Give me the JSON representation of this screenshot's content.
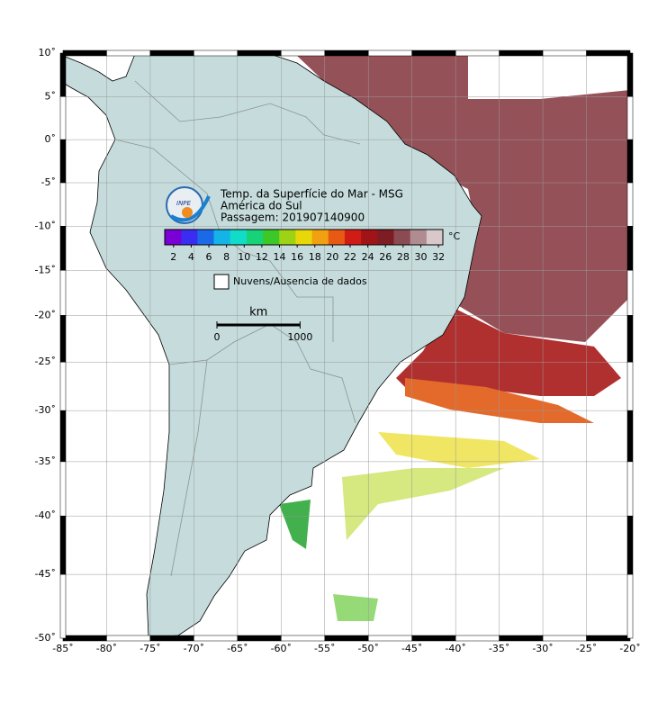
{
  "title": "Temp. da Superfície do Mar - MSG",
  "region": "América do Sul",
  "pass": "Passagem: 201907140900",
  "logo": "INPE",
  "colorbar": {
    "unit": "°C",
    "lim": [
      1,
      32.5
    ],
    "ticks": [
      2,
      4,
      6,
      8,
      10,
      12,
      14,
      16,
      18,
      20,
      22,
      24,
      26,
      28,
      30,
      32
    ],
    "colors": [
      "#7a00d6",
      "#3a2cf0",
      "#1a6ae8",
      "#14b4e6",
      "#10dcc8",
      "#18d27a",
      "#3cc828",
      "#9ed214",
      "#e8d80a",
      "#f0a010",
      "#e85a14",
      "#d01c14",
      "#a01418",
      "#7e1c24",
      "#8c4a52",
      "#b08c90",
      "#d8c8ca"
    ]
  },
  "legend": "Nuvens/Ausencia de dados",
  "scale_bar": {
    "unit": "km",
    "ticks": [
      0,
      1000
    ]
  },
  "map": {
    "xlim": [
      -85,
      -20
    ],
    "ylim": [
      -50,
      10
    ],
    "xticks": [
      {
        "value": -85,
        "label": "-85˚"
      },
      {
        "value": -80,
        "label": "-80˚"
      },
      {
        "value": -75,
        "label": "-75˚"
      },
      {
        "value": -70,
        "label": "-70˚"
      },
      {
        "value": -65,
        "label": "-65˚"
      },
      {
        "value": -60,
        "label": "-60˚"
      },
      {
        "value": -55,
        "label": "-55˚"
      },
      {
        "value": -50,
        "label": "-50˚"
      },
      {
        "value": -45,
        "label": "-45˚"
      },
      {
        "value": -40,
        "label": "-40˚"
      },
      {
        "value": -35,
        "label": "-35˚"
      },
      {
        "value": -30,
        "label": "-30˚"
      },
      {
        "value": -25,
        "label": "-25˚"
      },
      {
        "value": -20,
        "label": "-20˚"
      }
    ],
    "yticks": [
      {
        "value": 10,
        "label": "10˚"
      },
      {
        "value": 5,
        "label": "5˚"
      },
      {
        "value": 0,
        "label": "0˚"
      },
      {
        "value": -5,
        "label": "-5˚"
      },
      {
        "value": -10,
        "label": "-10˚"
      },
      {
        "value": -15,
        "label": "-15˚"
      },
      {
        "value": -20,
        "label": "-20˚"
      },
      {
        "value": -25,
        "label": "-25˚"
      },
      {
        "value": -30,
        "label": "-30˚"
      },
      {
        "value": -35,
        "label": "-35˚"
      },
      {
        "value": -40,
        "label": "-40˚"
      },
      {
        "value": -45,
        "label": "-45˚"
      },
      {
        "value": -50,
        "label": "-50˚"
      }
    ]
  }
}
